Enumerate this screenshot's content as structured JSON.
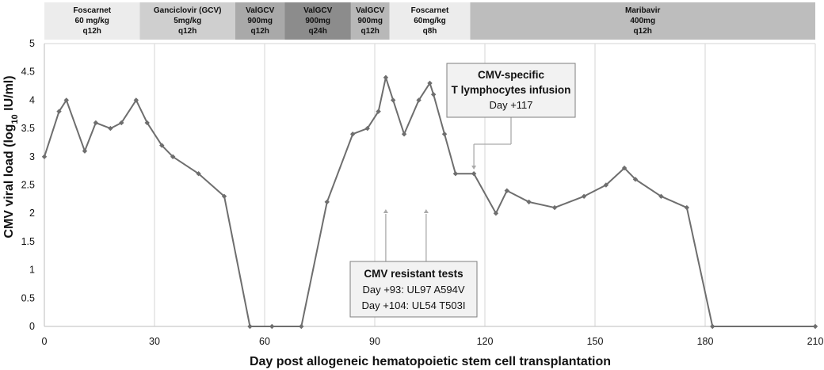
{
  "chart_data": {
    "type": "line",
    "xlabel": "Day post allogeneic hematopoietic stem cell transplantation",
    "ylabel_main": "CMV viral load (log",
    "ylabel_sub": "10",
    "ylabel_tail": " IU/ml)",
    "xlim": [
      0,
      210
    ],
    "ylim": [
      0,
      5
    ],
    "x_ticks": [
      "0",
      "30",
      "60",
      "90",
      "120",
      "150",
      "180",
      "210"
    ],
    "x_tick_values": [
      0,
      30,
      60,
      90,
      120,
      150,
      180,
      210
    ],
    "y_ticks": [
      "0",
      "0.5",
      "1",
      "1.5",
      "2",
      "2.5",
      "3",
      "3.5",
      "4",
      "4.5",
      "5"
    ],
    "y_tick_values": [
      0,
      0.5,
      1,
      1.5,
      2,
      2.5,
      3,
      3.5,
      4,
      4.5,
      5
    ],
    "grid": "vertical",
    "series": [
      {
        "color": "#6e6e6e",
        "points": [
          [
            0,
            3.0
          ],
          [
            4,
            3.8
          ],
          [
            6,
            4.0
          ],
          [
            11,
            3.1
          ],
          [
            14,
            3.6
          ],
          [
            18,
            3.5
          ],
          [
            21,
            3.6
          ],
          [
            25,
            4.0
          ],
          [
            28,
            3.6
          ],
          [
            32,
            3.2
          ],
          [
            35,
            3.0
          ],
          [
            42,
            2.7
          ],
          [
            49,
            2.3
          ],
          [
            56,
            0
          ],
          [
            62,
            0
          ],
          [
            70,
            0
          ],
          [
            77,
            2.2
          ],
          [
            84,
            3.4
          ],
          [
            88,
            3.5
          ],
          [
            91,
            3.8
          ],
          [
            93,
            4.4
          ],
          [
            95,
            4.0
          ],
          [
            98,
            3.4
          ],
          [
            102,
            4.0
          ],
          [
            105,
            4.3
          ],
          [
            106,
            4.1
          ],
          [
            109,
            3.4
          ],
          [
            112,
            2.7
          ],
          [
            117,
            2.7
          ],
          [
            123,
            2.0
          ],
          [
            126,
            2.4
          ],
          [
            132,
            2.2
          ],
          [
            139,
            2.1
          ],
          [
            147,
            2.3
          ],
          [
            153,
            2.5
          ],
          [
            158,
            2.8
          ],
          [
            161,
            2.6
          ],
          [
            168,
            2.3
          ],
          [
            175,
            2.1
          ],
          [
            182,
            0
          ],
          [
            210,
            0
          ]
        ]
      }
    ],
    "treatment_bands": [
      {
        "start": 0,
        "end": 26,
        "color": "#ececec",
        "lines": [
          "Foscarnet",
          "60 mg/kg",
          "q12h"
        ]
      },
      {
        "start": 26,
        "end": 52,
        "color": "#cfcfcf",
        "lines": [
          "Ganciclovir (GCV)",
          "5mg/kg",
          "q12h"
        ]
      },
      {
        "start": 52,
        "end": 65.5,
        "color": "#a9a9a9",
        "lines": [
          "ValGCV",
          "900mg",
          "q12h"
        ]
      },
      {
        "start": 65.5,
        "end": 83.5,
        "color": "#8c8c8c",
        "lines": [
          "ValGCV",
          "900mg",
          "q24h"
        ]
      },
      {
        "start": 83.5,
        "end": 94,
        "color": "#b8b8b8",
        "lines": [
          "ValGCV",
          "900mg",
          "q12h"
        ]
      },
      {
        "start": 94,
        "end": 116,
        "color": "#ececec",
        "lines": [
          "Foscarnet",
          "60mg/kg",
          "q8h"
        ]
      },
      {
        "start": 116,
        "end": 210,
        "color": "#bdbdbd",
        "lines": [
          "Maribavir",
          "400mg",
          "q12h"
        ]
      }
    ],
    "annotations": [
      {
        "id": "ctl",
        "lines": [
          "CMV-specific",
          "T lymphocytes infusion",
          "Day +117"
        ],
        "bold_lines": 2,
        "arrow_days": [
          117
        ]
      },
      {
        "id": "resistance",
        "lines": [
          "CMV resistant tests",
          "Day +93: UL97 A594V",
          "Day +104: UL54 T503I"
        ],
        "bold_lines": 1,
        "arrow_days": [
          93,
          104
        ]
      }
    ]
  }
}
